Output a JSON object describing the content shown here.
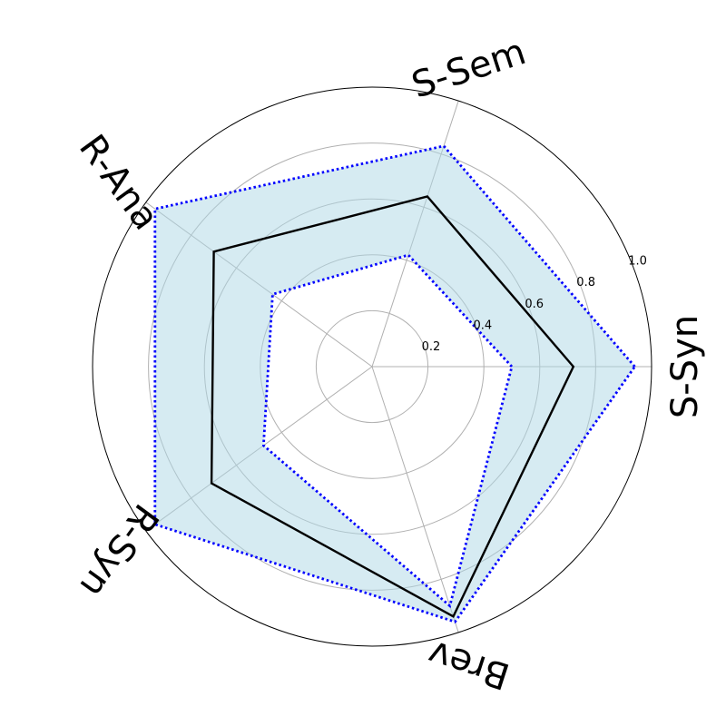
{
  "chart_data": {
    "type": "radar",
    "axes": [
      "S-Syn",
      "S-Sem",
      "R-Ana",
      "R-Syn",
      "Brev"
    ],
    "radial_ticks": [
      "0.2",
      "0.4",
      "0.6",
      "0.8",
      "1.0"
    ],
    "rlim": [
      0,
      1.0
    ],
    "grid": true,
    "series": [
      {
        "values": [
          0.72,
          0.64,
          0.7,
          0.71,
          0.94
        ],
        "style": "solid",
        "color": "#000000"
      },
      {
        "values": [
          0.5,
          0.42,
          0.44,
          0.48,
          0.9
        ],
        "style": "dotted",
        "color": "#0000ff"
      },
      {
        "values": [
          0.94,
          0.83,
          0.96,
          0.96,
          0.96
        ],
        "style": "dotted",
        "color": "#0000ff"
      }
    ],
    "band_fill_color": "#add8e6"
  }
}
